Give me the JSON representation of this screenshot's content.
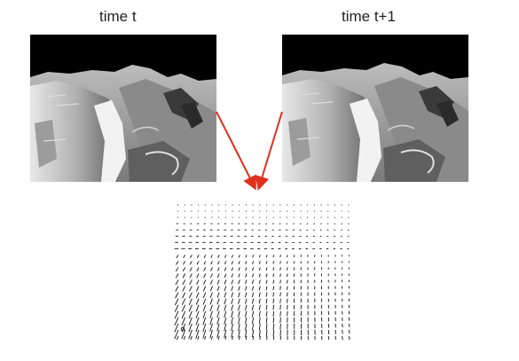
{
  "labels": {
    "left_frame": "time t",
    "right_frame": "time t+1"
  },
  "icons": {
    "left_image": "terrain-image",
    "right_image": "terrain-image",
    "flow": "optical-flow-field"
  },
  "colors": {
    "arrow": "#e0301e",
    "sky": "#000000",
    "vector": "#111111"
  }
}
